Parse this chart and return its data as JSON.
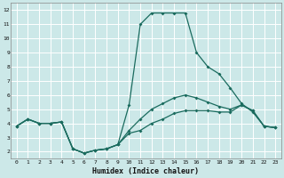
{
  "xlabel": "Humidex (Indice chaleur)",
  "bg_color": "#cce8e8",
  "grid_color": "#b0d4d4",
  "line_color": "#1a6b5e",
  "line_max": {
    "x": [
      0,
      1,
      2,
      3,
      4,
      5,
      6,
      7,
      8,
      9,
      10,
      11,
      12,
      13,
      14,
      15,
      16,
      17,
      18,
      19,
      20,
      21,
      22,
      23
    ],
    "y": [
      3.8,
      4.3,
      4.0,
      4.0,
      4.1,
      2.2,
      1.9,
      2.1,
      2.2,
      2.5,
      5.3,
      11.0,
      11.8,
      11.8,
      11.8,
      11.8,
      9.0,
      8.0,
      7.5,
      6.5,
      5.4,
      4.8,
      3.8,
      3.7
    ]
  },
  "line_mid": {
    "x": [
      0,
      1,
      2,
      3,
      4,
      5,
      6,
      7,
      8,
      9,
      10,
      11,
      12,
      13,
      14,
      15,
      16,
      17,
      18,
      19,
      20,
      21,
      22,
      23
    ],
    "y": [
      3.8,
      4.3,
      4.0,
      4.0,
      4.1,
      2.2,
      1.9,
      2.1,
      2.2,
      2.5,
      3.5,
      4.3,
      5.0,
      5.4,
      5.8,
      6.0,
      5.8,
      5.5,
      5.2,
      5.0,
      5.3,
      4.9,
      3.8,
      3.7
    ]
  },
  "line_min": {
    "x": [
      0,
      1,
      2,
      3,
      4,
      5,
      6,
      7,
      8,
      9,
      10,
      11,
      12,
      13,
      14,
      15,
      16,
      17,
      18,
      19,
      20,
      21,
      22,
      23
    ],
    "y": [
      3.8,
      4.3,
      4.0,
      4.0,
      4.1,
      2.2,
      1.9,
      2.1,
      2.2,
      2.5,
      3.3,
      3.5,
      4.0,
      4.3,
      4.7,
      4.9,
      4.9,
      4.9,
      4.8,
      4.8,
      5.3,
      4.9,
      3.8,
      3.7
    ]
  },
  "xlim": [
    -0.5,
    23.5
  ],
  "ylim": [
    1.5,
    12.5
  ],
  "yticks": [
    2,
    3,
    4,
    5,
    6,
    7,
    8,
    9,
    10,
    11,
    12
  ],
  "xticks": [
    0,
    1,
    2,
    3,
    4,
    5,
    6,
    7,
    8,
    9,
    10,
    11,
    12,
    13,
    14,
    15,
    16,
    17,
    18,
    19,
    20,
    21,
    22,
    23
  ]
}
